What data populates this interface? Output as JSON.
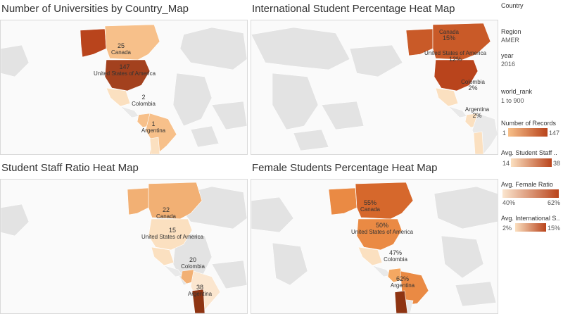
{
  "panels": [
    {
      "title": "Number of Universities by Country_Map",
      "labels": {
        "canada": {
          "value": "25",
          "name": "Canada"
        },
        "usa": {
          "value": "147",
          "name": "United States of America"
        },
        "colombia": {
          "value": "2",
          "name": "Colombia"
        },
        "argentina": {
          "value": "1",
          "name": "Argentina"
        }
      }
    },
    {
      "title": "International Student Percentage Heat Map",
      "labels": {
        "canada": {
          "value": "15%",
          "name": "Canada"
        },
        "usa": {
          "value": "12%",
          "name": "United States of America"
        },
        "colombia": {
          "value": "2%",
          "name": "Colombia"
        },
        "argentina": {
          "value": "2%",
          "name": "Argentina"
        }
      }
    },
    {
      "title": "Student Staff Ratio Heat Map",
      "labels": {
        "canada": {
          "value": "22",
          "name": "Canada"
        },
        "usa": {
          "value": "15",
          "name": "United States of America"
        },
        "colombia": {
          "value": "20",
          "name": "Colombia"
        },
        "argentina": {
          "value": "38",
          "name": "Argentina"
        }
      }
    },
    {
      "title": "Female Students Percentage Heat Map",
      "labels": {
        "canada": {
          "value": "55%",
          "name": "Canada"
        },
        "usa": {
          "value": "50%",
          "name": "United States of America"
        },
        "colombia": {
          "value": "47%",
          "name": "Colombia"
        },
        "argentina": {
          "value": "62%",
          "name": "Argentina"
        }
      }
    }
  ],
  "sidebar": {
    "country": {
      "title": "Country"
    },
    "region": {
      "title": "Region",
      "value": "AMER"
    },
    "year": {
      "title": "year",
      "value": "2016"
    },
    "world_rank": {
      "title": "world_rank",
      "value": "1 to 900"
    },
    "legends": [
      {
        "title": "Number of Records",
        "lo": "1",
        "hi": "147",
        "from": "#f7c08a",
        "to": "#b9441c"
      },
      {
        "title": "Avg. Student Staff ..",
        "lo": "14",
        "hi": "38",
        "from": "#fbe0c0",
        "to": "#b9441c"
      },
      {
        "title": "Avg. Female Ratio",
        "lo": "40%",
        "hi": "62%",
        "from": "#fbe6cf",
        "to": "#b9441c"
      },
      {
        "title": "Avg. International S..",
        "lo": "2%",
        "hi": "15%",
        "from": "#fbe0c0",
        "to": "#b9441c"
      }
    ]
  },
  "colors": {
    "land": "#e3e3e3",
    "ocean": "#fafafa",
    "ramp_low": "#fbe0c0",
    "ramp_high": "#b9441c"
  }
}
